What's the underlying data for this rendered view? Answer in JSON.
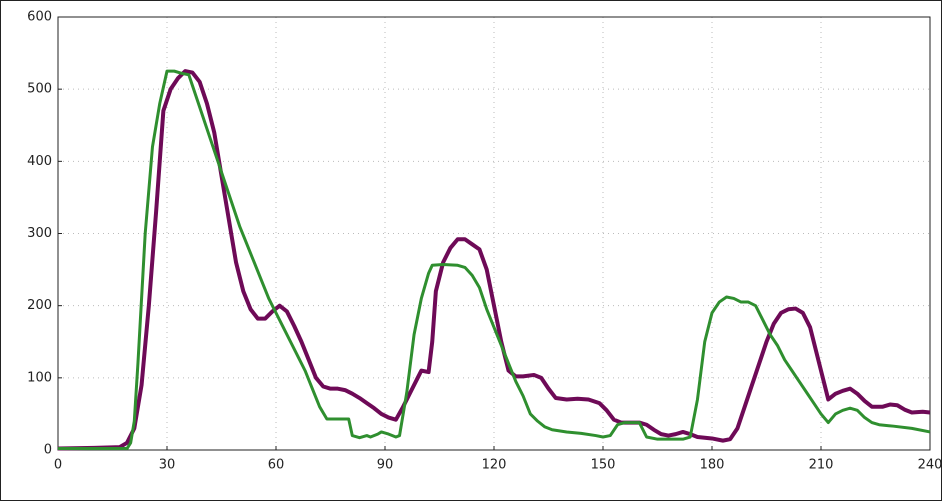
{
  "chart_data": {
    "type": "line",
    "xlim": [
      0,
      240
    ],
    "xticks": [
      0,
      30,
      60,
      90,
      120,
      150,
      180,
      210,
      240
    ],
    "ylim": [
      0,
      600
    ],
    "yticks": [
      0,
      100,
      200,
      300,
      400,
      500,
      600
    ],
    "grid": true,
    "series": [
      {
        "color": "#6e0a57",
        "width": 4,
        "x": [
          0,
          10,
          17,
          19,
          21,
          23,
          25,
          27,
          29,
          31,
          33,
          35,
          37,
          39,
          41,
          43,
          45,
          47,
          49,
          51,
          53,
          55,
          57,
          59,
          61,
          63,
          65,
          67,
          69,
          71,
          73,
          75,
          77,
          79,
          81,
          83,
          85,
          87,
          89,
          91,
          93,
          95,
          97,
          99,
          100,
          102,
          103,
          104,
          106,
          108,
          110,
          112,
          114,
          116,
          118,
          120,
          122,
          124,
          126,
          128,
          131,
          133,
          135,
          137,
          140,
          143,
          146,
          149,
          151,
          153,
          155,
          157,
          160,
          162,
          164,
          166,
          168,
          170,
          172,
          174,
          176,
          180,
          183,
          185,
          187,
          189,
          191,
          193,
          195,
          197,
          199,
          201,
          203,
          205,
          207,
          209,
          211,
          212,
          214,
          216,
          218,
          220,
          222,
          224,
          227,
          229,
          231,
          233,
          235,
          238,
          240
        ],
        "values": [
          2,
          3,
          4,
          10,
          30,
          90,
          200,
          330,
          470,
          500,
          515,
          525,
          523,
          510,
          480,
          440,
          380,
          320,
          260,
          220,
          195,
          182,
          182,
          192,
          200,
          192,
          172,
          150,
          125,
          100,
          88,
          85,
          85,
          83,
          78,
          72,
          65,
          58,
          50,
          45,
          42,
          60,
          80,
          100,
          110,
          108,
          150,
          220,
          260,
          280,
          292,
          292,
          285,
          278,
          250,
          200,
          150,
          110,
          102,
          102,
          104,
          100,
          85,
          72,
          70,
          71,
          70,
          65,
          55,
          42,
          38,
          38,
          38,
          35,
          28,
          22,
          20,
          22,
          25,
          22,
          18,
          16,
          13,
          15,
          30,
          60,
          90,
          120,
          150,
          175,
          190,
          195,
          196,
          190,
          170,
          130,
          90,
          70,
          78,
          82,
          85,
          78,
          68,
          60,
          60,
          63,
          62,
          56,
          52,
          53,
          52
        ]
      },
      {
        "color": "#2f8f2f",
        "width": 3,
        "x": [
          0,
          10,
          19,
          20,
          21,
          22,
          24,
          26,
          28,
          30,
          32,
          34,
          36,
          38,
          40,
          42,
          44,
          46,
          48,
          50,
          52,
          54,
          56,
          58,
          60,
          62,
          64,
          66,
          68,
          70,
          72,
          74,
          76,
          80,
          81,
          83,
          85,
          86,
          88,
          89,
          91,
          93,
          94,
          96,
          98,
          100,
          102,
          103,
          106,
          110,
          112,
          114,
          116,
          118,
          120,
          122,
          124,
          126,
          128,
          130,
          132,
          134,
          136,
          140,
          144,
          148,
          150,
          152,
          154,
          156,
          160,
          162,
          165,
          170,
          172,
          174,
          176,
          178,
          180,
          182,
          184,
          186,
          188,
          190,
          192,
          194,
          196,
          198,
          200,
          202,
          204,
          206,
          208,
          210,
          212,
          214,
          216,
          218,
          220,
          222,
          224,
          226,
          230,
          235,
          240
        ],
        "values": [
          2,
          2,
          2,
          10,
          40,
          120,
          300,
          420,
          480,
          525,
          525,
          522,
          520,
          490,
          460,
          430,
          400,
          370,
          340,
          310,
          285,
          260,
          235,
          210,
          190,
          170,
          150,
          130,
          110,
          85,
          60,
          43,
          43,
          43,
          20,
          17,
          20,
          18,
          22,
          25,
          22,
          18,
          20,
          80,
          160,
          210,
          245,
          256,
          257,
          256,
          253,
          242,
          225,
          195,
          170,
          145,
          120,
          95,
          75,
          50,
          40,
          32,
          28,
          25,
          23,
          20,
          18,
          20,
          35,
          38,
          38,
          18,
          15,
          15,
          15,
          18,
          70,
          150,
          190,
          205,
          212,
          210,
          205,
          205,
          200,
          180,
          160,
          145,
          125,
          110,
          95,
          80,
          65,
          50,
          38,
          50,
          55,
          58,
          55,
          45,
          38,
          35,
          33,
          30,
          25
        ]
      }
    ]
  }
}
